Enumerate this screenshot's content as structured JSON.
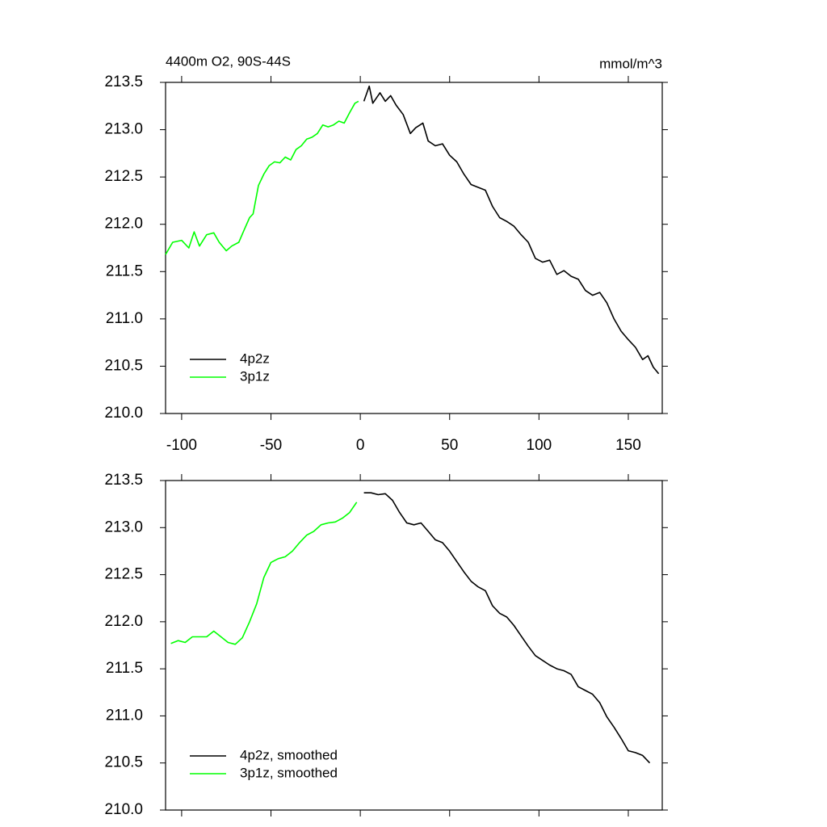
{
  "chart_data": [
    {
      "type": "line",
      "title": "4400m O2, 90S-44S",
      "units_label": "mmol/m^3",
      "xlim": [
        -109,
        169
      ],
      "xticks": [
        -100,
        -50,
        0,
        50,
        100,
        150
      ],
      "ylim": [
        210.0,
        213.5
      ],
      "yticks": [
        {
          "value": 210.0,
          "label": "210.0"
        },
        {
          "value": 210.5,
          "label": "210.5"
        },
        {
          "value": 211.0,
          "label": "211.0"
        },
        {
          "value": 211.5,
          "label": "211.5"
        },
        {
          "value": 212.0,
          "label": "212.0"
        },
        {
          "value": 212.5,
          "label": "212.5"
        },
        {
          "value": 213.0,
          "label": "213.0"
        },
        {
          "value": 213.5,
          "label": "213.5"
        }
      ],
      "xticklabels": true,
      "legend": "lower left",
      "series": [
        {
          "name": "4p2z",
          "color": "#000000",
          "x": [
            2,
            5,
            7,
            11,
            14,
            17,
            20,
            24,
            28,
            31,
            35,
            38,
            42,
            46,
            50,
            54,
            58,
            62,
            66,
            70,
            74,
            78,
            82,
            86,
            90,
            94,
            98,
            102,
            106,
            110,
            114,
            118,
            122,
            126,
            130,
            134,
            138,
            142,
            146,
            150,
            154,
            158,
            161,
            164,
            167
          ],
          "values": [
            213.3,
            213.46,
            213.28,
            213.39,
            213.3,
            213.36,
            213.26,
            213.16,
            212.96,
            213.02,
            213.07,
            212.88,
            212.83,
            212.85,
            212.73,
            212.66,
            212.53,
            212.42,
            212.39,
            212.36,
            212.19,
            212.07,
            212.03,
            211.98,
            211.89,
            211.81,
            211.64,
            211.6,
            211.62,
            211.47,
            211.51,
            211.45,
            211.42,
            211.3,
            211.25,
            211.28,
            211.17,
            211.0,
            210.87,
            210.78,
            210.7,
            210.57,
            210.61,
            210.49,
            210.42
          ]
        },
        {
          "name": "3p1z",
          "color": "#00ff00",
          "x": [
            -109,
            -105,
            -100,
            -96,
            -93,
            -90,
            -86,
            -82,
            -79,
            -75,
            -72,
            -68,
            -65,
            -62,
            -60,
            -57,
            -54,
            -51,
            -48,
            -45,
            -42,
            -39,
            -36,
            -33,
            -30,
            -27,
            -24,
            -21,
            -18,
            -15,
            -12,
            -9,
            -6,
            -3,
            -1
          ],
          "values": [
            211.68,
            211.81,
            211.83,
            211.75,
            211.92,
            211.77,
            211.89,
            211.91,
            211.81,
            211.72,
            211.77,
            211.81,
            211.94,
            212.07,
            212.11,
            212.41,
            212.53,
            212.62,
            212.66,
            212.65,
            212.71,
            212.68,
            212.79,
            212.83,
            212.9,
            212.92,
            212.96,
            213.05,
            213.03,
            213.05,
            213.09,
            213.07,
            213.18,
            213.28,
            213.3
          ]
        }
      ]
    },
    {
      "type": "line",
      "xlim": [
        -109,
        169
      ],
      "xticks": [
        -100,
        -50,
        0,
        50,
        100,
        150
      ],
      "ylim": [
        210.0,
        213.5
      ],
      "yticks": [
        {
          "value": 210.0,
          "label": "210.0"
        },
        {
          "value": 210.5,
          "label": "210.5"
        },
        {
          "value": 211.0,
          "label": "211.0"
        },
        {
          "value": 211.5,
          "label": "211.5"
        },
        {
          "value": 212.0,
          "label": "212.0"
        },
        {
          "value": 212.5,
          "label": "212.5"
        },
        {
          "value": 213.0,
          "label": "213.0"
        },
        {
          "value": 213.5,
          "label": "213.5"
        }
      ],
      "xticklabels": false,
      "legend": "lower left",
      "series": [
        {
          "name": "4p2z, smoothed",
          "color": "#000000",
          "x": [
            2,
            6,
            10,
            14,
            18,
            22,
            26,
            30,
            34,
            38,
            42,
            46,
            50,
            54,
            58,
            62,
            66,
            70,
            74,
            78,
            82,
            86,
            90,
            94,
            98,
            102,
            106,
            110,
            114,
            118,
            122,
            126,
            130,
            134,
            138,
            142,
            146,
            150,
            154,
            158,
            162
          ],
          "values": [
            213.37,
            213.37,
            213.35,
            213.36,
            213.29,
            213.16,
            213.05,
            213.03,
            213.05,
            212.96,
            212.87,
            212.84,
            212.75,
            212.64,
            212.53,
            212.43,
            212.37,
            212.33,
            212.17,
            212.09,
            212.05,
            211.96,
            211.85,
            211.74,
            211.64,
            211.59,
            211.54,
            211.5,
            211.48,
            211.44,
            211.31,
            211.27,
            211.23,
            211.14,
            210.99,
            210.88,
            210.76,
            210.63,
            210.61,
            210.58,
            210.5
          ]
        },
        {
          "name": "3p1z, smoothed",
          "color": "#00ff00",
          "x": [
            -106,
            -102,
            -98,
            -94,
            -90,
            -86,
            -82,
            -78,
            -74,
            -70,
            -66,
            -62,
            -58,
            -54,
            -50,
            -46,
            -42,
            -38,
            -34,
            -30,
            -26,
            -22,
            -18,
            -14,
            -10,
            -6,
            -2
          ],
          "values": [
            211.77,
            211.8,
            211.78,
            211.84,
            211.84,
            211.84,
            211.9,
            211.84,
            211.78,
            211.76,
            211.83,
            212.0,
            212.19,
            212.47,
            212.63,
            212.67,
            212.69,
            212.75,
            212.84,
            212.92,
            212.96,
            213.03,
            213.05,
            213.06,
            213.1,
            213.16,
            213.27
          ]
        }
      ]
    }
  ]
}
